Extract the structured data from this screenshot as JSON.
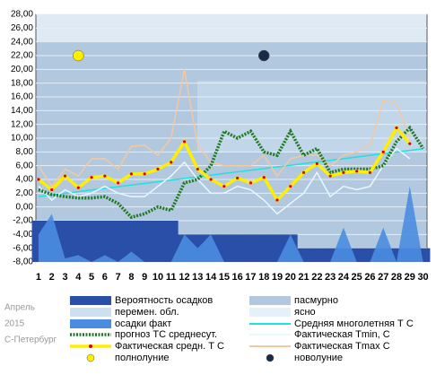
{
  "chart_data": {
    "type": "line",
    "caption": [
      "Апрель",
      "2015",
      "С-Петербург"
    ],
    "x": [
      1,
      2,
      3,
      4,
      5,
      6,
      7,
      8,
      9,
      10,
      11,
      12,
      13,
      14,
      15,
      16,
      17,
      18,
      19,
      20,
      21,
      22,
      23,
      24,
      25,
      26,
      27,
      28,
      29,
      30
    ],
    "xlim": [
      0.8,
      30.3
    ],
    "xticks": [
      1,
      2,
      3,
      4,
      5,
      6,
      7,
      8,
      9,
      10,
      11,
      12,
      13,
      14,
      15,
      16,
      17,
      18,
      19,
      20,
      21,
      22,
      23,
      24,
      25,
      26,
      27,
      28,
      29,
      30
    ],
    "ylim": [
      -8,
      28
    ],
    "yticks": [
      {
        "value": 28,
        "label": "28,00"
      },
      {
        "value": 26,
        "label": "26,00"
      },
      {
        "value": 24,
        "label": "24,00"
      },
      {
        "value": 22,
        "label": "22,00"
      },
      {
        "value": 20,
        "label": "20,00"
      },
      {
        "value": 18,
        "label": "18,00"
      },
      {
        "value": 16,
        "label": "16,00"
      },
      {
        "value": 14,
        "label": "14,00"
      },
      {
        "value": 12,
        "label": "12,00"
      },
      {
        "value": 10,
        "label": "10,00"
      },
      {
        "value": 8,
        "label": "8,00"
      },
      {
        "value": 6,
        "label": "6,00"
      },
      {
        "value": 4,
        "label": "4,00"
      },
      {
        "value": 2,
        "label": "2,00"
      },
      {
        "value": 0,
        "label": "0,00"
      },
      {
        "value": -2,
        "label": "-2,00"
      },
      {
        "value": -4,
        "label": "-4,00"
      },
      {
        "value": -6,
        "label": "-6,00"
      },
      {
        "value": -8,
        "label": "-8,00"
      }
    ],
    "grid": true,
    "series": [
      {
        "name": "Вероятность осадков",
        "color": "#2a4fa8",
        "style": "step-area",
        "values": [
          -2,
          -2,
          -2,
          -2,
          -2,
          -2,
          -2,
          -2,
          -2,
          -2,
          -2,
          -4,
          -4,
          -4,
          -4,
          -4,
          -4,
          -4,
          -4,
          -4,
          -6,
          -6,
          -6,
          -6,
          -6,
          -6,
          -6,
          -6,
          -6,
          -6
        ]
      },
      {
        "name": "осадки факт",
        "color": "#4a8de0",
        "style": "area",
        "values": [
          -4,
          -1,
          -7.5,
          -7,
          -8,
          -7,
          -8,
          -6.5,
          -8,
          -8,
          -8,
          -4,
          -6,
          -4,
          -8,
          -8,
          -8,
          -8,
          -8,
          -4,
          -8,
          -8,
          -8,
          -3,
          -8,
          -8,
          -3,
          -8,
          3,
          -8
        ]
      },
      {
        "name": "Средняя многолетняя Т С",
        "color": "#20e0e0",
        "style": "line",
        "values": [
          1.5,
          1.74,
          1.98,
          2.22,
          2.46,
          2.7,
          2.94,
          3.18,
          3.42,
          3.66,
          3.9,
          4.14,
          4.38,
          4.62,
          4.86,
          5.1,
          5.34,
          5.58,
          5.82,
          6.06,
          6.3,
          6.54,
          6.78,
          7.02,
          7.26,
          7.5,
          7.74,
          7.98,
          8.22,
          8.46
        ]
      },
      {
        "name": "Фактическая Tmin, С",
        "color": "#e8f8ff",
        "style": "line",
        "values": [
          3,
          1,
          2.5,
          1.5,
          2,
          3,
          2,
          1.5,
          1.5,
          3,
          4.5,
          6.5,
          4,
          2,
          2,
          3,
          2.5,
          1,
          -1,
          0.5,
          2,
          5,
          1.5,
          3,
          2.5,
          3,
          6,
          8.5,
          7,
          null
        ]
      },
      {
        "name": "Фактическая Tmax C",
        "color": "#f4c8a0",
        "style": "line",
        "values": [
          6,
          3,
          5.5,
          4.5,
          7,
          7,
          5.5,
          8.8,
          9,
          7.5,
          10,
          20,
          9,
          6.5,
          6,
          6,
          6,
          7.5,
          4.5,
          7,
          7.5,
          7.5,
          6,
          7.5,
          8,
          9,
          15.5,
          15,
          10,
          null
        ]
      },
      {
        "name": "прогноз ТС среднесут.",
        "color": "#1e7a1e",
        "style": "dotted",
        "values": [
          2.5,
          1.8,
          1.5,
          1.3,
          1.3,
          1.5,
          0.5,
          -1.5,
          -1,
          0,
          -0.5,
          3.5,
          4,
          6,
          11,
          10,
          11,
          8,
          7.5,
          11,
          7.5,
          8.5,
          5,
          5.5,
          5.5,
          5.5,
          6,
          9.5,
          11.5,
          8.5
        ]
      },
      {
        "name": "Фактическая средн. Т С",
        "color": "#ffee00",
        "style": "thick",
        "marker": "#e00000",
        "values": [
          4,
          2.5,
          4.5,
          2.8,
          4.3,
          4.5,
          3.5,
          4.8,
          4.8,
          5.5,
          6.5,
          9.5,
          5.5,
          4,
          3,
          4.2,
          3.5,
          4.3,
          1,
          3,
          5,
          6.3,
          4.5,
          5,
          5.2,
          5,
          8,
          11.5,
          9.2,
          null
        ]
      }
    ],
    "cloud_legend": [
      {
        "name": "пасмурно",
        "color": "#b2c8de"
      },
      {
        "name": "перемен. обл.",
        "color": "#cddff0"
      },
      {
        "name": "ясно",
        "color": "#e6f0f8"
      }
    ],
    "moons": [
      {
        "name": "полнолуние",
        "day": 4,
        "value": 22,
        "color": "#ffee00"
      },
      {
        "name": "новолуние",
        "day": 18,
        "value": 22,
        "color": "#1a2a48"
      }
    ]
  }
}
